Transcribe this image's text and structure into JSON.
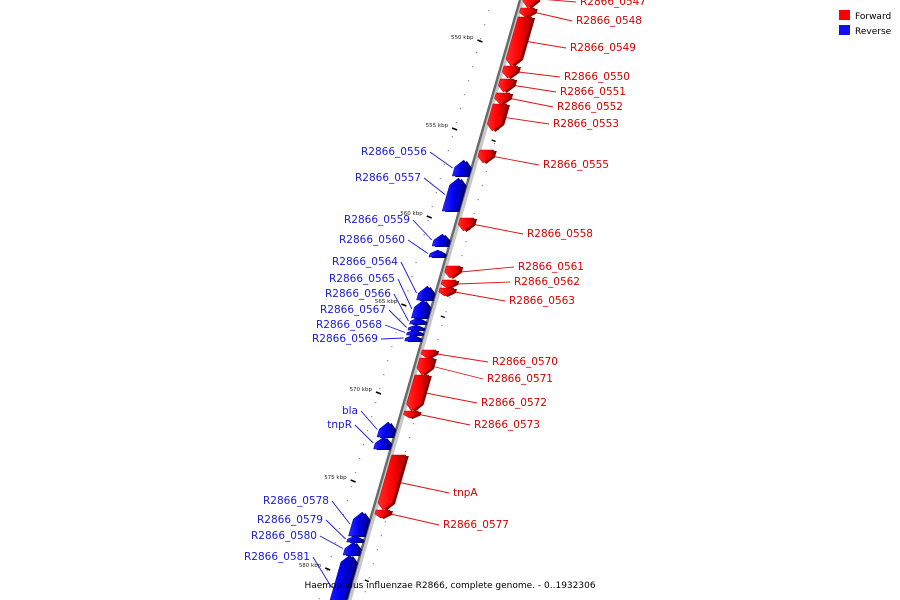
{
  "legend": {
    "forward_label": "Forward",
    "reverse_label": "Reverse",
    "forward_color": "#ff0000",
    "reverse_color": "#1010ee"
  },
  "caption": "Haemophilus influenzae R2866, complete genome. - 0..1932306",
  "scale_ticks": [
    {
      "kbp": 550,
      "label": "550 kbp"
    },
    {
      "kbp": 555,
      "label": "555 kbp"
    },
    {
      "kbp": 560,
      "label": "560 kbp"
    },
    {
      "kbp": 565,
      "label": "565 kbp"
    },
    {
      "kbp": 570,
      "label": "570 kbp"
    },
    {
      "kbp": 575,
      "label": "575 kbp"
    },
    {
      "kbp": 580,
      "label": "580 kbp"
    }
  ],
  "genes": [
    {
      "name": "R2866_0547",
      "strand": "forward"
    },
    {
      "name": "R2866_0548",
      "strand": "forward"
    },
    {
      "name": "R2866_0549",
      "strand": "forward"
    },
    {
      "name": "R2866_0550",
      "strand": "forward"
    },
    {
      "name": "R2866_0551",
      "strand": "forward"
    },
    {
      "name": "R2866_0552",
      "strand": "forward"
    },
    {
      "name": "R2866_0553",
      "strand": "forward"
    },
    {
      "name": "R2866_0555",
      "strand": "forward"
    },
    {
      "name": "R2866_0556",
      "strand": "reverse"
    },
    {
      "name": "R2866_0557",
      "strand": "reverse"
    },
    {
      "name": "R2866_0558",
      "strand": "forward"
    },
    {
      "name": "R2866_0559",
      "strand": "reverse"
    },
    {
      "name": "R2866_0560",
      "strand": "reverse"
    },
    {
      "name": "R2866_0561",
      "strand": "forward"
    },
    {
      "name": "R2866_0562",
      "strand": "forward"
    },
    {
      "name": "R2866_0563",
      "strand": "forward"
    },
    {
      "name": "R2866_0564",
      "strand": "reverse"
    },
    {
      "name": "R2866_0565",
      "strand": "reverse"
    },
    {
      "name": "R2866_0566",
      "strand": "reverse"
    },
    {
      "name": "R2866_0567",
      "strand": "reverse"
    },
    {
      "name": "R2866_0568",
      "strand": "reverse"
    },
    {
      "name": "R2866_0569",
      "strand": "reverse"
    },
    {
      "name": "R2866_0570",
      "strand": "forward"
    },
    {
      "name": "R2866_0571",
      "strand": "forward"
    },
    {
      "name": "R2866_0572",
      "strand": "forward"
    },
    {
      "name": "R2866_0573",
      "strand": "forward"
    },
    {
      "name": "bla",
      "strand": "reverse"
    },
    {
      "name": "tnpR",
      "strand": "reverse"
    },
    {
      "name": "tnpA",
      "strand": "forward"
    },
    {
      "name": "R2866_0577",
      "strand": "forward"
    },
    {
      "name": "R2866_0578",
      "strand": "reverse"
    },
    {
      "name": "R2866_0579",
      "strand": "reverse"
    },
    {
      "name": "R2866_0580",
      "strand": "reverse"
    },
    {
      "name": "R2866_0581",
      "strand": "reverse"
    }
  ]
}
